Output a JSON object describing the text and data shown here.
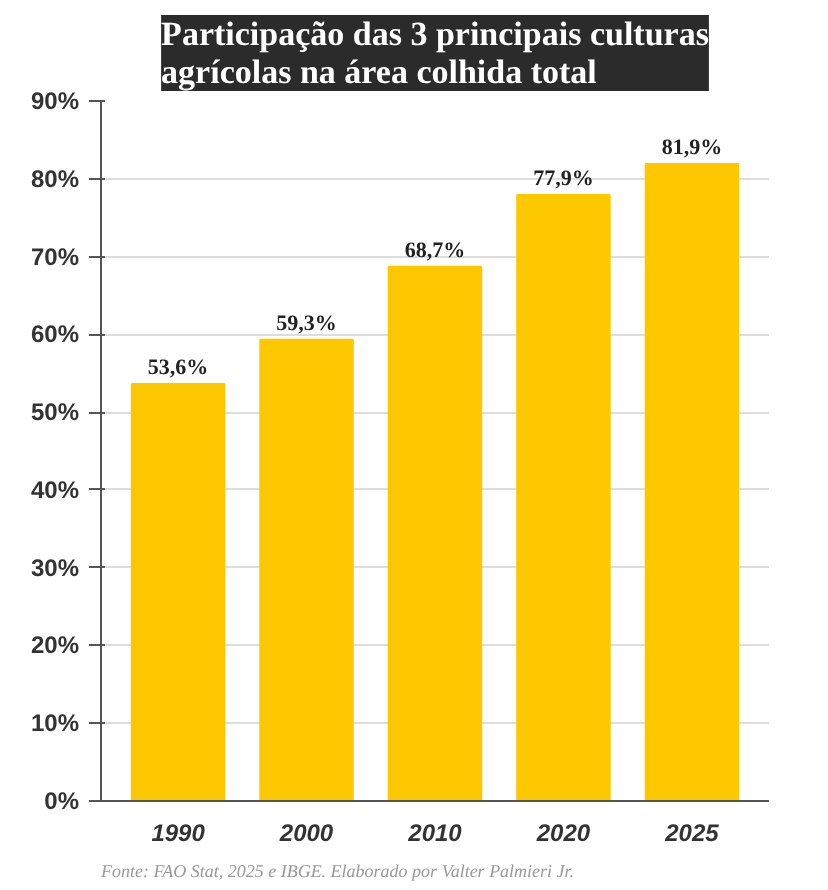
{
  "chart_data": {
    "type": "bar",
    "title": "Participação das 3 principais culturas\nagrícolas na área colhida total",
    "categories": [
      "1990",
      "2000",
      "2010",
      "2020",
      "2025"
    ],
    "values": [
      53.6,
      59.3,
      68.7,
      77.9,
      81.9
    ],
    "value_labels": [
      "53,6%",
      "59,3%",
      "68,7%",
      "77,9%",
      "81,9%"
    ],
    "color": "#fdc800",
    "ylim": [
      0,
      90
    ],
    "yticks": [
      {
        "value": 0,
        "label": "0%"
      },
      {
        "value": 10,
        "label": "10%"
      },
      {
        "value": 20,
        "label": "20%"
      },
      {
        "value": 30,
        "label": "30%"
      },
      {
        "value": 40,
        "label": "40%"
      },
      {
        "value": 50,
        "label": "50%"
      },
      {
        "value": 60,
        "label": "60%"
      },
      {
        "value": 70,
        "label": "70%"
      },
      {
        "value": 80,
        "label": "80%"
      },
      {
        "value": 90,
        "label": "90%"
      }
    ],
    "grid": "y",
    "annotations": [
      "Fonte: FAO Stat, 2025 e IBGE. Elaborado por Valter Palmieri Jr."
    ]
  }
}
